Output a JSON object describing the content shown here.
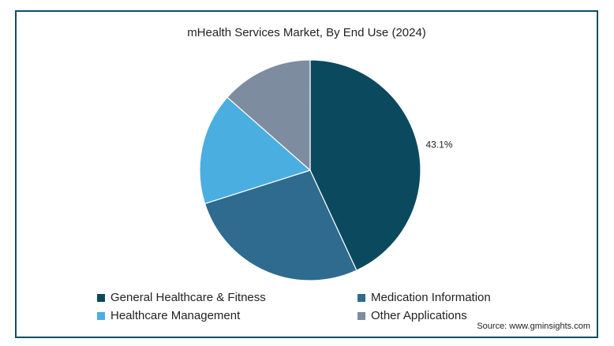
{
  "chart_data": {
    "type": "pie",
    "title": "mHealth Services Market, By End Use (2024)",
    "categories": [
      "General Healthcare & Fitness",
      "Medication Information",
      "Healthcare Management",
      "Other Applications"
    ],
    "values": [
      43.1,
      27.0,
      16.4,
      13.5
    ],
    "colors": [
      "#0b4a5e",
      "#2e6b8e",
      "#4aaee0",
      "#7d8c9e"
    ],
    "data_labels": [
      "43.1%",
      "",
      "",
      ""
    ],
    "legend_position": "bottom",
    "source": "Source: www.gminsights.com"
  }
}
